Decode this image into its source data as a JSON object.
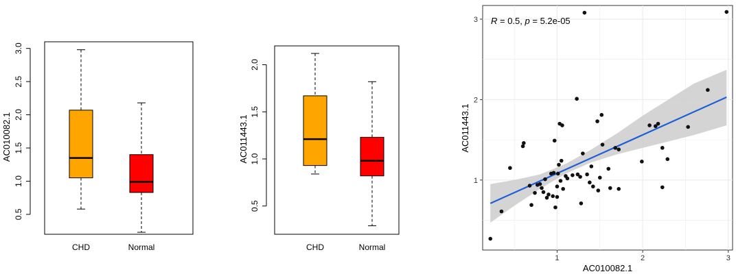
{
  "colors": {
    "chd_box": "#FFA500",
    "normal_box": "#FF0000",
    "fit_line": "#1f5fd6",
    "ci_band": "#cccccc",
    "point": "#111111",
    "grid": "#ebebeb"
  },
  "chart_data": [
    {
      "type": "boxplot",
      "ylabel": "AC010082.1",
      "categories": [
        "CHD",
        "Normal"
      ],
      "ylim": [
        0.2,
        3.1
      ],
      "yticks": [
        "0.5",
        "1.0",
        "1.5",
        "2.0",
        "2.5",
        "3.0"
      ],
      "boxes": [
        {
          "name": "CHD",
          "whisker_low": 0.58,
          "q1": 1.05,
          "median": 1.35,
          "q3": 2.07,
          "whisker_high": 2.98
        },
        {
          "name": "Normal",
          "whisker_low": 0.23,
          "q1": 0.83,
          "median": 0.99,
          "q3": 1.4,
          "whisker_high": 2.18
        }
      ]
    },
    {
      "type": "boxplot",
      "ylabel": "AC011443.1",
      "categories": [
        "CHD",
        "Normal"
      ],
      "ylim": [
        0.2,
        2.2
      ],
      "yticks": [
        "0.5",
        "1.0",
        "1.5",
        "2.0"
      ],
      "boxes": [
        {
          "name": "CHD",
          "whisker_low": 0.84,
          "q1": 0.93,
          "median": 1.21,
          "q3": 1.67,
          "whisker_high": 2.12
        },
        {
          "name": "Normal",
          "whisker_low": 0.29,
          "q1": 0.82,
          "median": 0.98,
          "q3": 1.23,
          "whisker_high": 1.82
        }
      ]
    },
    {
      "type": "scatter",
      "xlabel": "AC010082.1",
      "ylabel": "AC011443.1",
      "xlim": [
        0.13,
        3.05
      ],
      "ylim": [
        0.13,
        3.17
      ],
      "xticks": [
        1,
        2,
        3
      ],
      "yticks": [
        1,
        2,
        3
      ],
      "annotation": {
        "r_label": "R",
        "r_value": " = 0.5, ",
        "p_label": "p",
        "p_value": " = 5.2e-05"
      },
      "fit": {
        "x0": 0.22,
        "y0": 0.71,
        "x1": 2.98,
        "y1": 2.03
      },
      "ci_band": {
        "x": [
          0.22,
          0.5,
          0.8,
          1.1,
          1.4,
          1.7,
          2.0,
          2.3,
          2.6,
          2.98
        ],
        "lower": [
          0.47,
          0.68,
          0.89,
          1.08,
          1.22,
          1.32,
          1.4,
          1.48,
          1.56,
          1.68
        ],
        "upper": [
          0.95,
          1.0,
          1.07,
          1.2,
          1.38,
          1.58,
          1.8,
          2.0,
          2.2,
          2.37
        ]
      },
      "points": [
        [
          0.22,
          0.27
        ],
        [
          0.35,
          0.61
        ],
        [
          0.45,
          1.15
        ],
        [
          0.6,
          1.42
        ],
        [
          0.61,
          1.46
        ],
        [
          0.68,
          0.93
        ],
        [
          0.7,
          0.69
        ],
        [
          0.74,
          0.84
        ],
        [
          0.77,
          0.94
        ],
        [
          0.8,
          0.95
        ],
        [
          0.82,
          0.9
        ],
        [
          0.84,
          0.85
        ],
        [
          0.86,
          1.01
        ],
        [
          0.88,
          0.78
        ],
        [
          0.9,
          0.82
        ],
        [
          0.93,
          1.08
        ],
        [
          0.95,
          0.8
        ],
        [
          0.96,
          1.09
        ],
        [
          0.97,
          1.49
        ],
        [
          0.98,
          0.66
        ],
        [
          1.0,
          0.79
        ],
        [
          1.0,
          0.92
        ],
        [
          1.01,
          1.08
        ],
        [
          1.02,
          1.19
        ],
        [
          1.03,
          1.7
        ],
        [
          1.04,
          0.99
        ],
        [
          1.05,
          1.24
        ],
        [
          1.06,
          1.68
        ],
        [
          1.07,
          0.89
        ],
        [
          1.1,
          1.05
        ],
        [
          1.12,
          1.02
        ],
        [
          1.18,
          1.06
        ],
        [
          1.23,
          2.01
        ],
        [
          1.24,
          1.07
        ],
        [
          1.27,
          1.04
        ],
        [
          1.28,
          0.71
        ],
        [
          1.3,
          1.33
        ],
        [
          1.32,
          3.08
        ],
        [
          1.35,
          1.07
        ],
        [
          1.38,
          0.97
        ],
        [
          1.4,
          1.17
        ],
        [
          1.42,
          0.92
        ],
        [
          1.47,
          1.73
        ],
        [
          1.48,
          0.87
        ],
        [
          1.5,
          1.03
        ],
        [
          1.52,
          1.81
        ],
        [
          1.53,
          1.44
        ],
        [
          1.6,
          1.14
        ],
        [
          1.62,
          0.9
        ],
        [
          1.68,
          1.4
        ],
        [
          1.72,
          0.89
        ],
        [
          1.72,
          1.38
        ],
        [
          1.99,
          1.23
        ],
        [
          2.08,
          1.68
        ],
        [
          2.15,
          1.67
        ],
        [
          2.18,
          1.7
        ],
        [
          2.23,
          1.4
        ],
        [
          2.23,
          0.91
        ],
        [
          2.29,
          1.26
        ],
        [
          2.53,
          1.66
        ],
        [
          2.76,
          2.12
        ],
        [
          2.98,
          3.09
        ]
      ]
    }
  ]
}
